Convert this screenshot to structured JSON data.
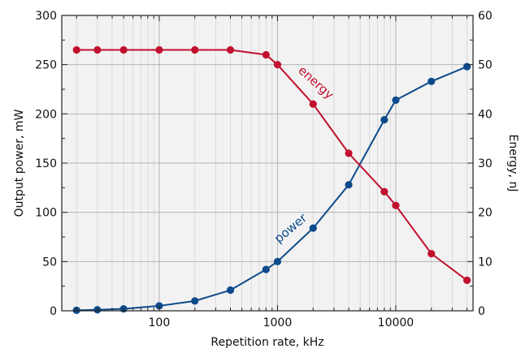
{
  "chart_data": {
    "type": "line",
    "title": "",
    "xlabel": "Repetition rate, kHz",
    "ylabel": "Output power, mW",
    "y2label": "Energy, nJ",
    "x_scale": "log",
    "xlim": [
      15,
      45000
    ],
    "ylim": [
      0,
      300
    ],
    "y2lim": [
      0,
      60
    ],
    "grid": true,
    "x_ticks": [
      "100",
      "1000",
      "10000"
    ],
    "y_ticks": [
      "0",
      "50",
      "100",
      "150",
      "200",
      "250",
      "300"
    ],
    "y2_ticks": [
      "0",
      "10",
      "20",
      "30",
      "40",
      "50",
      "60"
    ],
    "series": [
      {
        "name": "power",
        "axis": "left",
        "color": "#0d4a8c",
        "x": [
          20,
          30,
          50,
          100,
          200,
          400,
          800,
          1000,
          2000,
          4000,
          8000,
          10000,
          20000,
          40000
        ],
        "y": [
          0.5,
          1,
          2,
          5,
          10,
          21,
          42,
          50,
          84,
          128,
          194,
          214,
          233,
          248
        ]
      },
      {
        "name": "energy",
        "axis": "right",
        "color": "#c0102e",
        "x": [
          20,
          30,
          50,
          100,
          200,
          400,
          800,
          1000,
          2000,
          4000,
          8000,
          10000,
          20000,
          40000
        ],
        "y": [
          53,
          53,
          53,
          53,
          53,
          53,
          52,
          50,
          42,
          32,
          24.2,
          21.4,
          11.6,
          6.2
        ]
      }
    ]
  }
}
